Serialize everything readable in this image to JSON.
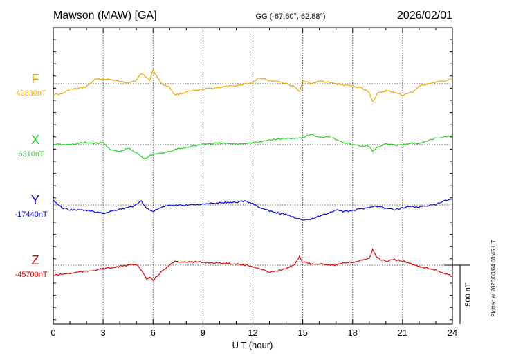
{
  "header": {
    "station": "Mawson (MAW)  [GA]",
    "coords": "GG (-67.60°,  62.88°)",
    "date": "2026/02/01"
  },
  "side_note": "Plotted at 2026/03/04 00:45 UT",
  "scale_bar": {
    "label": "500 nT",
    "value_nT": 500
  },
  "chart_data": {
    "type": "line",
    "xlabel": "U T (hour)",
    "xlim": [
      0,
      24
    ],
    "xticks": [
      0,
      3,
      6,
      9,
      12,
      15,
      18,
      21,
      24
    ],
    "grid": "dotted vertical every 3 hours; dotted baseline per trace",
    "series": [
      {
        "name": "F",
        "baseline_label": "49330nT",
        "color": "#f0a800",
        "points": [
          [
            0,
            15
          ],
          [
            0.5,
            15
          ],
          [
            1,
            8
          ],
          [
            1.5,
            7
          ],
          [
            2,
            4
          ],
          [
            2.5,
            -6
          ],
          [
            3,
            -7
          ],
          [
            3.5,
            -6
          ],
          [
            4,
            -3
          ],
          [
            4.5,
            -2
          ],
          [
            5,
            -5
          ],
          [
            5.3,
            -15
          ],
          [
            5.6,
            -10
          ],
          [
            5.8,
            -5
          ],
          [
            6,
            -20
          ],
          [
            6.2,
            -12
          ],
          [
            6.5,
            0
          ],
          [
            7,
            5
          ],
          [
            7.3,
            16
          ],
          [
            7.7,
            14
          ],
          [
            8,
            12
          ],
          [
            9,
            8
          ],
          [
            10,
            5
          ],
          [
            11,
            3
          ],
          [
            12,
            -2
          ],
          [
            12.3,
            -8
          ],
          [
            12.7,
            -8
          ],
          [
            13,
            -4
          ],
          [
            13.5,
            -4
          ],
          [
            14,
            0
          ],
          [
            14.5,
            4
          ],
          [
            14.8,
            12
          ],
          [
            15,
            -5
          ],
          [
            15.5,
            0
          ],
          [
            16,
            -4
          ],
          [
            16.5,
            -2
          ],
          [
            17,
            0
          ],
          [
            17.5,
            2
          ],
          [
            18,
            3
          ],
          [
            18.5,
            6
          ],
          [
            19,
            12
          ],
          [
            19.2,
            26
          ],
          [
            19.5,
            14
          ],
          [
            20,
            10
          ],
          [
            20.5,
            12
          ],
          [
            21,
            17
          ],
          [
            21.3,
            14
          ],
          [
            21.6,
            12
          ],
          [
            22,
            4
          ],
          [
            22.5,
            0
          ],
          [
            23,
            -2
          ],
          [
            23.5,
            -4
          ],
          [
            24,
            -7
          ]
        ]
      },
      {
        "name": "X",
        "baseline_label": "6310nT",
        "color": "#1fd41f",
        "points": [
          [
            0,
            -1
          ],
          [
            0.5,
            0
          ],
          [
            1,
            0
          ],
          [
            1.5,
            -2
          ],
          [
            2,
            -3
          ],
          [
            2.5,
            -2
          ],
          [
            3,
            -3
          ],
          [
            3.5,
            8
          ],
          [
            4,
            10
          ],
          [
            4.5,
            5
          ],
          [
            5,
            12
          ],
          [
            5.5,
            20
          ],
          [
            6,
            14
          ],
          [
            6.5,
            12
          ],
          [
            7,
            10
          ],
          [
            7.5,
            6
          ],
          [
            8,
            4
          ],
          [
            9,
            -1
          ],
          [
            10,
            -2
          ],
          [
            11,
            -1
          ],
          [
            12,
            -3
          ],
          [
            12.5,
            -4
          ],
          [
            13,
            -7
          ],
          [
            14,
            -9
          ],
          [
            15,
            -10
          ],
          [
            15.5,
            -15
          ],
          [
            16,
            -10
          ],
          [
            16.5,
            -12
          ],
          [
            17,
            -8
          ],
          [
            17.5,
            -3
          ],
          [
            18,
            0
          ],
          [
            18.5,
            2
          ],
          [
            19,
            2
          ],
          [
            19.2,
            10
          ],
          [
            19.5,
            4
          ],
          [
            20,
            -2
          ],
          [
            20.5,
            1
          ],
          [
            21,
            0
          ],
          [
            21.5,
            -2
          ],
          [
            22,
            -1
          ],
          [
            22.5,
            -6
          ],
          [
            23,
            -9
          ],
          [
            23.5,
            -11
          ],
          [
            24,
            -13
          ]
        ]
      },
      {
        "name": "Y",
        "baseline_label": "-17440nT",
        "color": "#0000e0",
        "points": [
          [
            0,
            -7
          ],
          [
            0.5,
            4
          ],
          [
            1,
            7
          ],
          [
            2,
            8
          ],
          [
            3,
            12
          ],
          [
            3.5,
            9
          ],
          [
            4,
            6
          ],
          [
            4.5,
            4
          ],
          [
            5,
            0
          ],
          [
            5.3,
            -6
          ],
          [
            5.6,
            5
          ],
          [
            6,
            9
          ],
          [
            6.5,
            4
          ],
          [
            7,
            1
          ],
          [
            8,
            0
          ],
          [
            9,
            -1
          ],
          [
            10,
            -3
          ],
          [
            11,
            -4
          ],
          [
            11.5,
            -6
          ],
          [
            12,
            -2
          ],
          [
            12.5,
            5
          ],
          [
            13,
            9
          ],
          [
            14,
            14
          ],
          [
            14.5,
            18
          ],
          [
            15,
            21
          ],
          [
            15.5,
            21
          ],
          [
            16,
            16
          ],
          [
            16.5,
            12
          ],
          [
            17,
            7
          ],
          [
            17.5,
            10
          ],
          [
            18,
            8
          ],
          [
            18.5,
            6
          ],
          [
            19,
            3
          ],
          [
            19.5,
            2
          ],
          [
            20,
            5
          ],
          [
            20.5,
            7
          ],
          [
            21,
            4
          ],
          [
            21.5,
            2
          ],
          [
            22,
            3
          ],
          [
            22.5,
            1
          ],
          [
            23,
            0
          ],
          [
            23.5,
            -6
          ],
          [
            24,
            -8
          ]
        ]
      },
      {
        "name": "Z",
        "baseline_label": "-45700nT",
        "color": "#e00000",
        "points": [
          [
            0,
            15
          ],
          [
            0.5,
            13
          ],
          [
            1,
            12
          ],
          [
            1.5,
            10
          ],
          [
            2,
            9
          ],
          [
            2.5,
            7
          ],
          [
            3,
            5
          ],
          [
            3.5,
            4
          ],
          [
            4,
            2
          ],
          [
            4.5,
            0
          ],
          [
            5,
            -2
          ],
          [
            5.3,
            8
          ],
          [
            5.6,
            20
          ],
          [
            5.8,
            18
          ],
          [
            6,
            22
          ],
          [
            6.3,
            14
          ],
          [
            6.7,
            6
          ],
          [
            7,
            0
          ],
          [
            7.3,
            -5
          ],
          [
            8,
            -5
          ],
          [
            9,
            -4
          ],
          [
            10,
            -3
          ],
          [
            11,
            -2
          ],
          [
            12,
            2
          ],
          [
            12.5,
            6
          ],
          [
            13,
            10
          ],
          [
            13.5,
            8
          ],
          [
            14,
            5
          ],
          [
            14.5,
            0
          ],
          [
            14.8,
            -12
          ],
          [
            15,
            -5
          ],
          [
            15.5,
            -2
          ],
          [
            16,
            -2
          ],
          [
            16.5,
            -1
          ],
          [
            17,
            0
          ],
          [
            17.5,
            -3
          ],
          [
            18,
            -4
          ],
          [
            18.5,
            -7
          ],
          [
            19,
            -10
          ],
          [
            19.2,
            -22
          ],
          [
            19.5,
            -10
          ],
          [
            20,
            -5
          ],
          [
            20.5,
            -8
          ],
          [
            21,
            -6
          ],
          [
            21.5,
            -2
          ],
          [
            22,
            2
          ],
          [
            22.5,
            4
          ],
          [
            23,
            7
          ],
          [
            23.5,
            12
          ],
          [
            24,
            16
          ]
        ]
      }
    ]
  }
}
